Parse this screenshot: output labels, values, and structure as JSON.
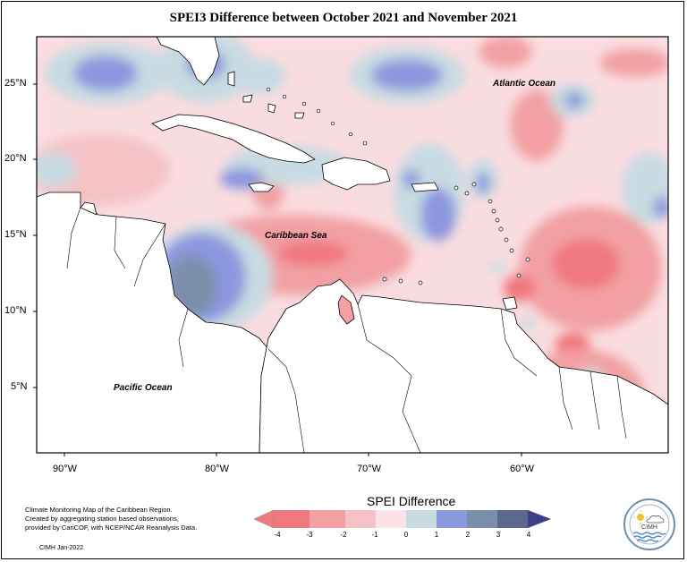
{
  "title": "SPEI3 Difference between October 2021 and November 2021",
  "axes": {
    "lat_labels": [
      "25°N",
      "20°N",
      "15°N",
      "10°N",
      "5°N"
    ],
    "lon_labels": [
      "90°W",
      "80°W",
      "70°W",
      "60°W"
    ]
  },
  "labels": {
    "atlantic": "Atlantic Ocean",
    "caribbean": "Caribbean Sea",
    "pacific": "Pacific Ocean"
  },
  "legend": {
    "title": "SPEI Difference",
    "ticks": [
      "-4",
      "-3",
      "-2",
      "-1",
      "0",
      "1",
      "2",
      "3",
      "4"
    ],
    "colors": [
      "#f0787f",
      "#f2a0a3",
      "#f5c2c6",
      "#fbe2e6",
      "#c8dbe2",
      "#8c98dd",
      "#7b8faa",
      "#5d6890",
      "#3b3f88"
    ]
  },
  "credit": {
    "line1": "Climate Monitoring Map of the Caribbean Region.",
    "line2": "Created by aggregating station based observations,",
    "line3": "provided by CariCOF, with NCEP/NCAR Reanalysis Data.",
    "date": "CIMH  Jan-2022"
  },
  "logo": {
    "text": "CIMH"
  }
}
